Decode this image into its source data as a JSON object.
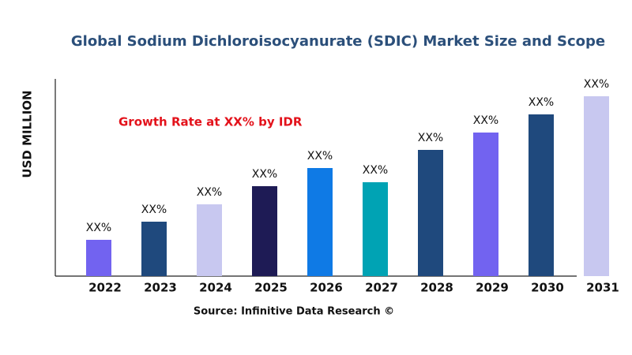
{
  "chart_data": {
    "type": "bar",
    "title": "Global Sodium Dichloroisocyanurate (SDIC) Market Size and Scope",
    "y_label": "USD MILLION",
    "annotation": "Growth Rate at XX% by IDR",
    "source": "Source: Infinitive Data Research ©",
    "categories": [
      "2022",
      "2023",
      "2024",
      "2025",
      "2026",
      "2027",
      "2028",
      "2029",
      "2030",
      "2031"
    ],
    "values": [
      46,
      69,
      91,
      114,
      137,
      119,
      160,
      182,
      205,
      228
    ],
    "value_labels": [
      "XX%",
      "XX%",
      "XX%",
      "XX%",
      "XX%",
      "XX%",
      "XX%",
      "XX%",
      "XX%",
      "XX%"
    ],
    "colors": [
      "#7263f0",
      "#1f497d",
      "#c8c8f0",
      "#1e1b55",
      "#0f7ae5",
      "#00a3b4",
      "#1f497d",
      "#7263f0",
      "#1f497d",
      "#c8c8f0"
    ],
    "ylim": [
      0,
      250
    ]
  }
}
